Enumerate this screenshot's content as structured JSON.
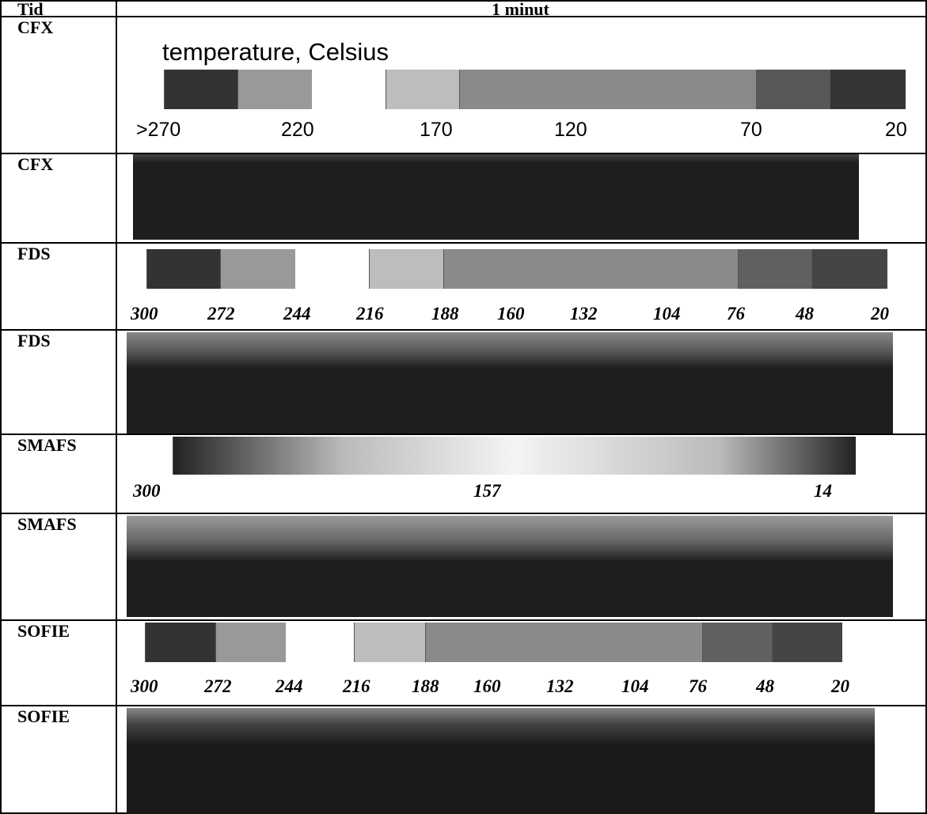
{
  "header": {
    "col1": "Tid",
    "col2": "1 minut"
  },
  "rows": [
    {
      "label": "CFX",
      "scale": {
        "title": "temperature, Celsius",
        "ticks": [
          ">270",
          "220",
          "170",
          "120",
          "70",
          "20"
        ]
      }
    },
    {
      "label": "CFX"
    },
    {
      "label": "FDS",
      "scale": {
        "ticks": [
          "300",
          "272",
          "244",
          "216",
          "188",
          "160",
          "132",
          "104",
          "76",
          "48",
          "20"
        ]
      }
    },
    {
      "label": "FDS"
    },
    {
      "label": "SMAFS",
      "scale": {
        "ticks": [
          "300",
          "157",
          "14"
        ]
      }
    },
    {
      "label": "SMAFS"
    },
    {
      "label": "SOFIE",
      "scale": {
        "ticks": [
          "300",
          "272",
          "244",
          "216",
          "188",
          "160",
          "132",
          "104",
          "76",
          "48",
          "20"
        ]
      }
    },
    {
      "label": "SOFIE"
    }
  ]
}
